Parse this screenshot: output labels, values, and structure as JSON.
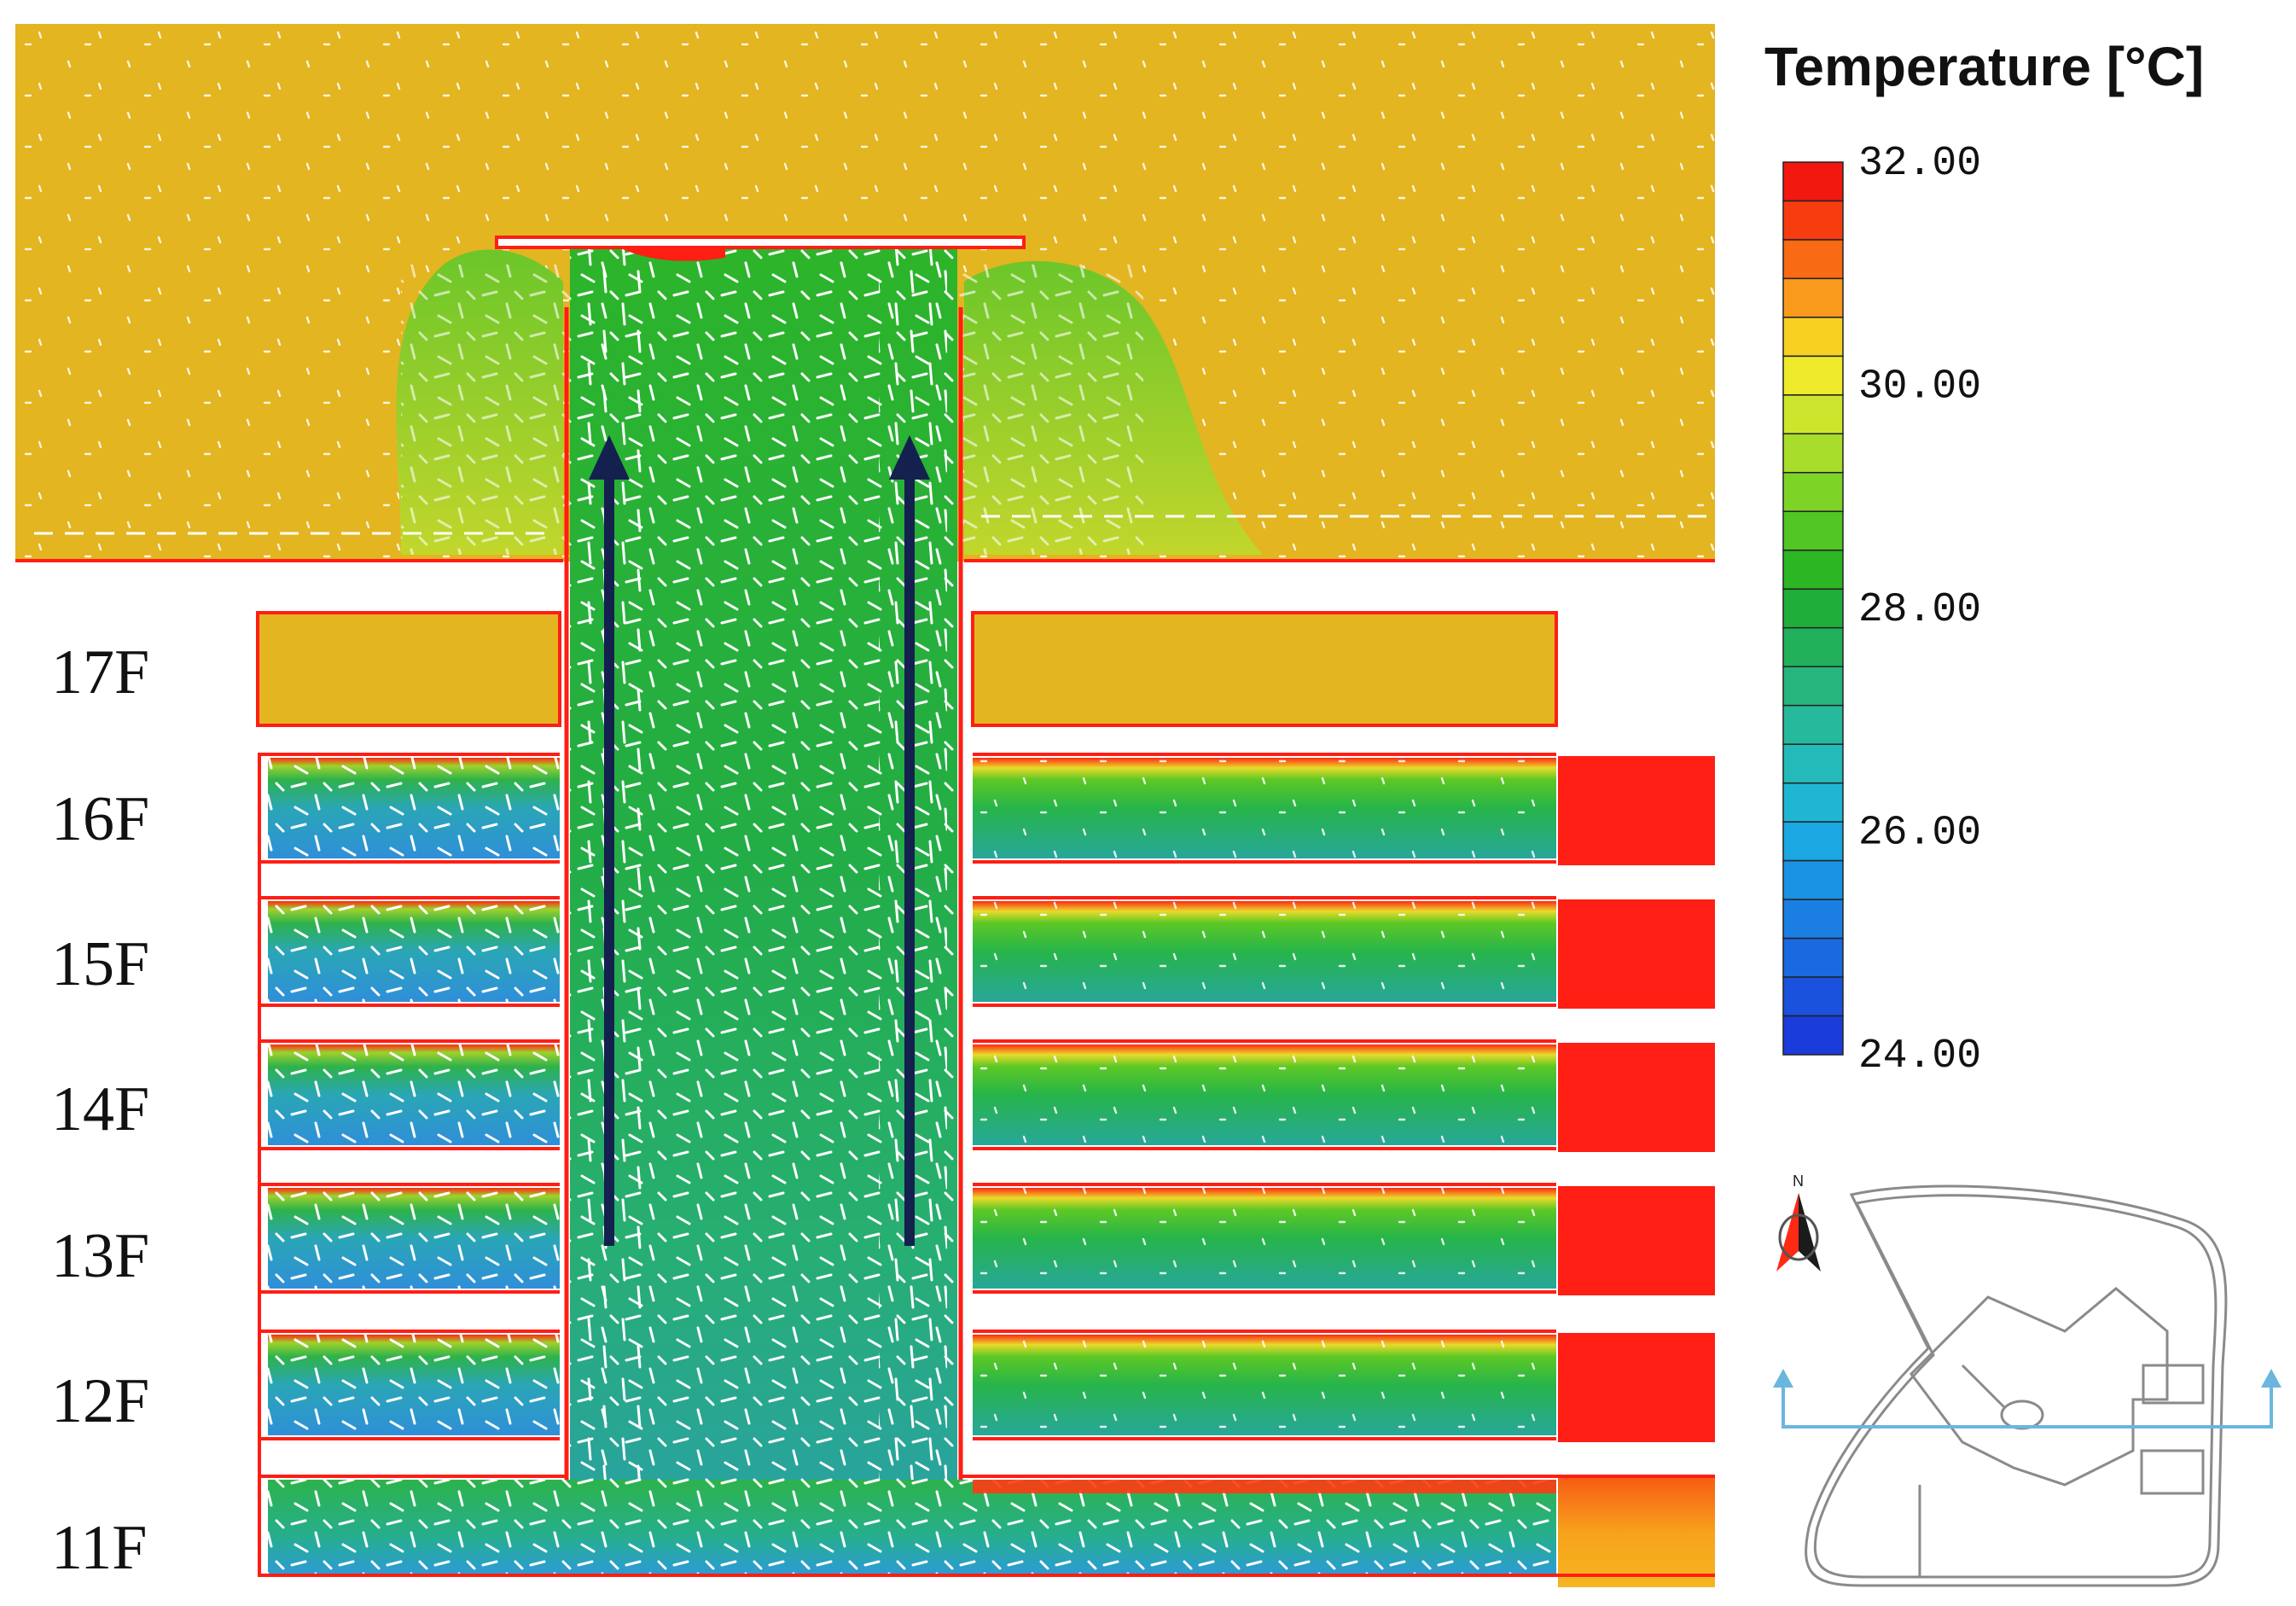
{
  "colors": {
    "ambient": "#E2B521",
    "shaft": "#24B24A",
    "wall": "#FF1E14",
    "hot_room": "#FF1E14",
    "cool_room": "#2F9ED6",
    "arrow": "#14204E",
    "section_line": "#6BB6DE",
    "plan_outline": "#8A8A8A"
  },
  "floors": [
    "17F",
    "16F",
    "15F",
    "14F",
    "13F",
    "12F",
    "11F"
  ],
  "legend": {
    "title": "Temperature [°C]",
    "ticks": [
      "32.00",
      "30.00",
      "28.00",
      "26.00",
      "24.00"
    ],
    "colors": [
      "#F2180F",
      "#F73C10",
      "#F86A14",
      "#FA9A1D",
      "#F8D021",
      "#EEE92A",
      "#CDE62D",
      "#A8DD2B",
      "#7ED327",
      "#52C624",
      "#2CB623",
      "#1FAE3A",
      "#22B15B",
      "#26B57C",
      "#27B99C",
      "#24BAB9",
      "#1FB6D4",
      "#1AA7E2",
      "#1A93E4",
      "#1A7EE2",
      "#1A69E0",
      "#1A52DD",
      "#1A3CDB"
    ]
  },
  "compass": {
    "label": "N",
    "icon": "north-arrow-icon"
  },
  "flow_arrows": {
    "count": 2,
    "direction": "up",
    "icon": "up-arrow-icon"
  }
}
